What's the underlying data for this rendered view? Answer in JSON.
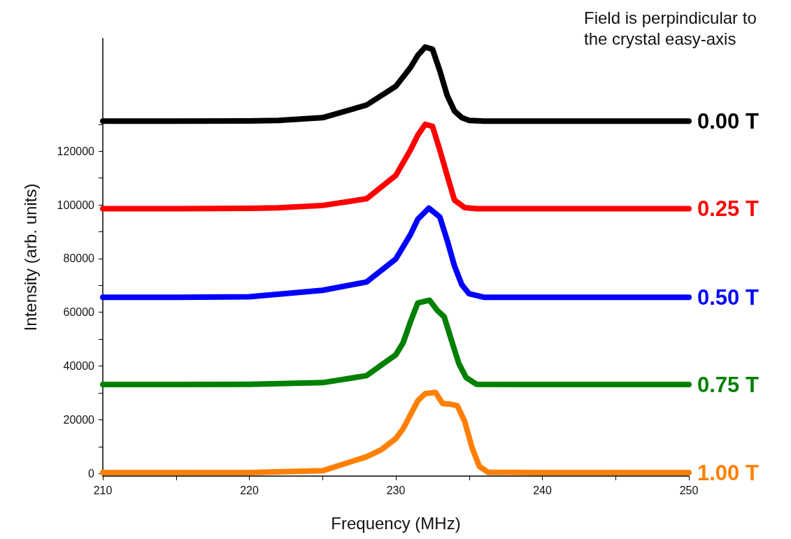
{
  "chart_data": {
    "type": "line",
    "xlabel": "Frequency (MHz)",
    "ylabel": "Intensity (arb. units)",
    "annotations": [
      "Field is perpindicular to the crystal easy-axis"
    ],
    "xlim": [
      210,
      250
    ],
    "ylim": [
      -1000,
      162000
    ],
    "xticks": [
      210,
      {
        "value": 215,
        "label": null
      },
      220,
      {
        "value": 225,
        "label": null
      },
      230,
      {
        "value": 235,
        "label": null
      },
      240,
      {
        "value": 245,
        "label": null
      },
      250
    ],
    "yticks": [
      0,
      {
        "value": 10000,
        "label": null
      },
      20000,
      {
        "value": 30000,
        "label": null
      },
      40000,
      {
        "value": 50000,
        "label": null
      },
      60000,
      {
        "value": 70000,
        "label": null
      },
      80000,
      {
        "value": 90000,
        "label": null
      },
      100000,
      {
        "value": 110000,
        "label": null
      },
      120000,
      {
        "value": 130000,
        "label": null
      }
    ],
    "grid": false,
    "legend": false,
    "line_style": "solid",
    "series": [
      {
        "name": "0.00 T",
        "color": "#000000",
        "x": [
          210,
          215,
          220,
          222,
          225,
          228,
          230,
          231,
          231.5,
          232,
          232.5,
          233,
          233.5,
          234,
          234.5,
          235,
          236,
          240,
          245,
          250
        ],
        "values": [
          131200,
          131200,
          131300,
          131500,
          132500,
          137200,
          144200,
          151200,
          155700,
          158800,
          158000,
          150000,
          140800,
          135000,
          132500,
          131500,
          131200,
          131200,
          131200,
          131200
        ]
      },
      {
        "name": "0.25 T",
        "color": "#ff0000",
        "x": [
          210,
          215,
          220,
          222,
          225,
          228,
          230,
          231,
          231.5,
          232,
          232.5,
          233,
          233.5,
          234,
          234.7,
          235.5,
          240,
          245,
          250
        ],
        "values": [
          98600,
          98600,
          98700,
          98900,
          99800,
          102300,
          111000,
          120500,
          126000,
          130000,
          129300,
          120500,
          111000,
          101800,
          99000,
          98600,
          98600,
          98600,
          98600
        ]
      },
      {
        "name": "0.50 T",
        "color": "#0000ff",
        "x": [
          210,
          215,
          220,
          225,
          228,
          230,
          231,
          231.5,
          232.25,
          233,
          233.5,
          234,
          234.5,
          235,
          236,
          240,
          245,
          250
        ],
        "values": [
          65600,
          65600,
          65800,
          68200,
          71300,
          79900,
          89000,
          94700,
          98800,
          95500,
          86900,
          77300,
          70300,
          66900,
          65600,
          65600,
          65600,
          65600
        ]
      },
      {
        "name": "0.75 T",
        "color": "#008000",
        "x": [
          210,
          215,
          220,
          225,
          228,
          230,
          230.5,
          231,
          231.5,
          232.3,
          232.8,
          233.3,
          233.8,
          234.3,
          234.8,
          235.5,
          240,
          245,
          250
        ],
        "values": [
          33100,
          33100,
          33200,
          33800,
          36400,
          44200,
          48700,
          56500,
          63500,
          64500,
          60900,
          58300,
          49500,
          40900,
          35700,
          33200,
          33100,
          33100,
          33100
        ]
      },
      {
        "name": "1.00 T",
        "color": "#ff8000",
        "x": [
          210,
          215,
          220,
          225,
          228,
          229,
          230,
          230.5,
          231,
          231.5,
          232,
          232.7,
          233.2,
          233.7,
          234.2,
          234.7,
          235.2,
          235.7,
          236.3,
          240,
          245,
          250
        ],
        "values": [
          300,
          300,
          300,
          1000,
          6200,
          8800,
          13000,
          16700,
          21900,
          27100,
          29700,
          30200,
          26000,
          25800,
          25200,
          19300,
          9600,
          2600,
          400,
          300,
          300,
          300
        ]
      }
    ]
  }
}
